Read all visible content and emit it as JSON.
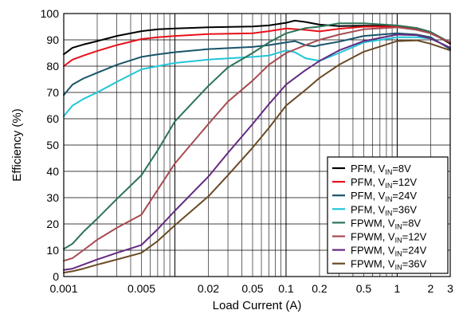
{
  "chart_data": {
    "type": "line",
    "title": "",
    "xlabel": "Load Current (A)",
    "ylabel": "Efficiency (%)",
    "xscale": "log",
    "xlim": [
      0.001,
      3
    ],
    "ylim": [
      0,
      100
    ],
    "x_tick_values": [
      0.001,
      0.005,
      0.02,
      0.05,
      0.1,
      0.2,
      0.5,
      1,
      2,
      3
    ],
    "x_tick_labels": [
      "0.001",
      "0.005",
      "0.02",
      "0.05",
      "0.1",
      "0.2",
      "0.5",
      "1",
      "2",
      "3"
    ],
    "y_tick_values": [
      0,
      10,
      20,
      30,
      40,
      50,
      60,
      70,
      80,
      90,
      100
    ],
    "y_tick_labels": [
      "0",
      "10",
      "20",
      "30",
      "40",
      "50",
      "60",
      "70",
      "80",
      "90",
      "100"
    ],
    "grid": true,
    "legend_placement": "bottom-right",
    "series": [
      {
        "label_main": "PFM, V",
        "label_sub": "IN",
        "label_tail": "=8V",
        "color": "#000000",
        "points": [
          [
            0.001,
            84.5
          ],
          [
            0.0012,
            87
          ],
          [
            0.0015,
            88.2
          ],
          [
            0.002,
            89.5
          ],
          [
            0.003,
            91.5
          ],
          [
            0.005,
            93.3
          ],
          [
            0.007,
            94
          ],
          [
            0.01,
            94.3
          ],
          [
            0.02,
            94.8
          ],
          [
            0.05,
            95.1
          ],
          [
            0.07,
            95.5
          ],
          [
            0.1,
            96.5
          ],
          [
            0.12,
            97.3
          ],
          [
            0.15,
            96.8
          ],
          [
            0.2,
            95.8
          ],
          [
            0.3,
            95.2
          ],
          [
            0.5,
            95.4
          ],
          [
            1,
            95.4
          ],
          [
            1.5,
            94.5
          ],
          [
            2,
            93
          ],
          [
            3,
            88.5
          ]
        ]
      },
      {
        "label_main": "PFM, V",
        "label_sub": "IN",
        "label_tail": "=12V",
        "color": "#e8101a",
        "points": [
          [
            0.001,
            80
          ],
          [
            0.0012,
            82.5
          ],
          [
            0.0015,
            84
          ],
          [
            0.002,
            85.8
          ],
          [
            0.003,
            88
          ],
          [
            0.005,
            90.3
          ],
          [
            0.007,
            91
          ],
          [
            0.01,
            91.5
          ],
          [
            0.02,
            92.2
          ],
          [
            0.05,
            92.5
          ],
          [
            0.07,
            93.3
          ],
          [
            0.1,
            94.3
          ],
          [
            0.15,
            93.8
          ],
          [
            0.2,
            93.2
          ],
          [
            0.3,
            94.2
          ],
          [
            0.5,
            95
          ],
          [
            1,
            95.1
          ],
          [
            1.5,
            94.3
          ],
          [
            2,
            92.5
          ],
          [
            3,
            89
          ]
        ]
      },
      {
        "label_main": "PFM, V",
        "label_sub": "IN",
        "label_tail": "=24V",
        "color": "#19546a",
        "points": [
          [
            0.001,
            69
          ],
          [
            0.0012,
            73
          ],
          [
            0.0015,
            75.3
          ],
          [
            0.002,
            77.5
          ],
          [
            0.003,
            80.5
          ],
          [
            0.005,
            83.5
          ],
          [
            0.007,
            84.5
          ],
          [
            0.01,
            85.3
          ],
          [
            0.02,
            86.5
          ],
          [
            0.05,
            87.3
          ],
          [
            0.07,
            88
          ],
          [
            0.1,
            89
          ],
          [
            0.12,
            89.5
          ],
          [
            0.15,
            88
          ],
          [
            0.18,
            87.5
          ],
          [
            0.2,
            88
          ],
          [
            0.3,
            89.3
          ],
          [
            0.5,
            91.5
          ],
          [
            1,
            92.5
          ],
          [
            1.5,
            92
          ],
          [
            2,
            91
          ],
          [
            3,
            86.5
          ]
        ]
      },
      {
        "label_main": "PFM, V",
        "label_sub": "IN",
        "label_tail": "=36V",
        "color": "#22c5d8",
        "points": [
          [
            0.001,
            61
          ],
          [
            0.0012,
            65
          ],
          [
            0.0015,
            67.5
          ],
          [
            0.002,
            70
          ],
          [
            0.003,
            74
          ],
          [
            0.005,
            78.8
          ],
          [
            0.007,
            80
          ],
          [
            0.01,
            81.2
          ],
          [
            0.02,
            82.5
          ],
          [
            0.05,
            83.5
          ],
          [
            0.07,
            84
          ],
          [
            0.1,
            86
          ],
          [
            0.12,
            85.3
          ],
          [
            0.15,
            83
          ],
          [
            0.2,
            82
          ],
          [
            0.3,
            85
          ],
          [
            0.5,
            89
          ],
          [
            1,
            91
          ],
          [
            1.5,
            91
          ],
          [
            2,
            90.5
          ],
          [
            3,
            87
          ]
        ]
      },
      {
        "label_main": "FPWM, V",
        "label_sub": "IN",
        "label_tail": "=8V",
        "color": "#2d7356",
        "points": [
          [
            0.001,
            10.5
          ],
          [
            0.0012,
            12.5
          ],
          [
            0.0015,
            17
          ],
          [
            0.002,
            22
          ],
          [
            0.003,
            29.5
          ],
          [
            0.005,
            38.5
          ],
          [
            0.007,
            48
          ],
          [
            0.01,
            59
          ],
          [
            0.02,
            72.5
          ],
          [
            0.03,
            79.5
          ],
          [
            0.05,
            85
          ],
          [
            0.07,
            89
          ],
          [
            0.1,
            92.5
          ],
          [
            0.15,
            94.5
          ],
          [
            0.2,
            95
          ],
          [
            0.3,
            96.3
          ],
          [
            0.5,
            96.3
          ],
          [
            1,
            95.5
          ],
          [
            1.5,
            94.5
          ],
          [
            2,
            93
          ],
          [
            3,
            89
          ]
        ]
      },
      {
        "label_main": "FPWM, V",
        "label_sub": "IN",
        "label_tail": "=12V",
        "color": "#a84a52",
        "points": [
          [
            0.001,
            6
          ],
          [
            0.0012,
            7
          ],
          [
            0.0015,
            10
          ],
          [
            0.002,
            14
          ],
          [
            0.003,
            18.5
          ],
          [
            0.005,
            23.5
          ],
          [
            0.007,
            33
          ],
          [
            0.01,
            43
          ],
          [
            0.02,
            58
          ],
          [
            0.03,
            66.5
          ],
          [
            0.05,
            74.5
          ],
          [
            0.07,
            80.5
          ],
          [
            0.1,
            85
          ],
          [
            0.15,
            88
          ],
          [
            0.2,
            90
          ],
          [
            0.3,
            92
          ],
          [
            0.5,
            94
          ],
          [
            1,
            94.8
          ],
          [
            1.5,
            93.8
          ],
          [
            2,
            92.5
          ],
          [
            3,
            89
          ]
        ]
      },
      {
        "label_main": "FPWM, V",
        "label_sub": "IN",
        "label_tail": "=24V",
        "color": "#642a82",
        "points": [
          [
            0.001,
            2.5
          ],
          [
            0.0012,
            3
          ],
          [
            0.0015,
            4.5
          ],
          [
            0.002,
            6.5
          ],
          [
            0.003,
            9
          ],
          [
            0.005,
            12
          ],
          [
            0.007,
            18
          ],
          [
            0.01,
            25
          ],
          [
            0.02,
            38
          ],
          [
            0.03,
            47
          ],
          [
            0.05,
            58
          ],
          [
            0.07,
            65.5
          ],
          [
            0.1,
            73
          ],
          [
            0.15,
            78.5
          ],
          [
            0.2,
            82
          ],
          [
            0.3,
            86
          ],
          [
            0.5,
            89.5
          ],
          [
            1,
            92
          ],
          [
            1.5,
            91.8
          ],
          [
            2,
            90.5
          ],
          [
            3,
            87
          ]
        ]
      },
      {
        "label_main": "FPWM, V",
        "label_sub": "IN",
        "label_tail": "=36V",
        "color": "#6b4a26",
        "points": [
          [
            0.001,
            1.5
          ],
          [
            0.0012,
            2
          ],
          [
            0.0015,
            3
          ],
          [
            0.002,
            4.5
          ],
          [
            0.003,
            6.5
          ],
          [
            0.005,
            9
          ],
          [
            0.007,
            13.5
          ],
          [
            0.01,
            19.5
          ],
          [
            0.02,
            30.5
          ],
          [
            0.03,
            38.5
          ],
          [
            0.05,
            49
          ],
          [
            0.07,
            56.5
          ],
          [
            0.1,
            65
          ],
          [
            0.15,
            71
          ],
          [
            0.2,
            75.5
          ],
          [
            0.3,
            80.5
          ],
          [
            0.5,
            85.5
          ],
          [
            1,
            89.5
          ],
          [
            1.5,
            89.8
          ],
          [
            2,
            88.5
          ],
          [
            3,
            86
          ]
        ]
      }
    ]
  }
}
